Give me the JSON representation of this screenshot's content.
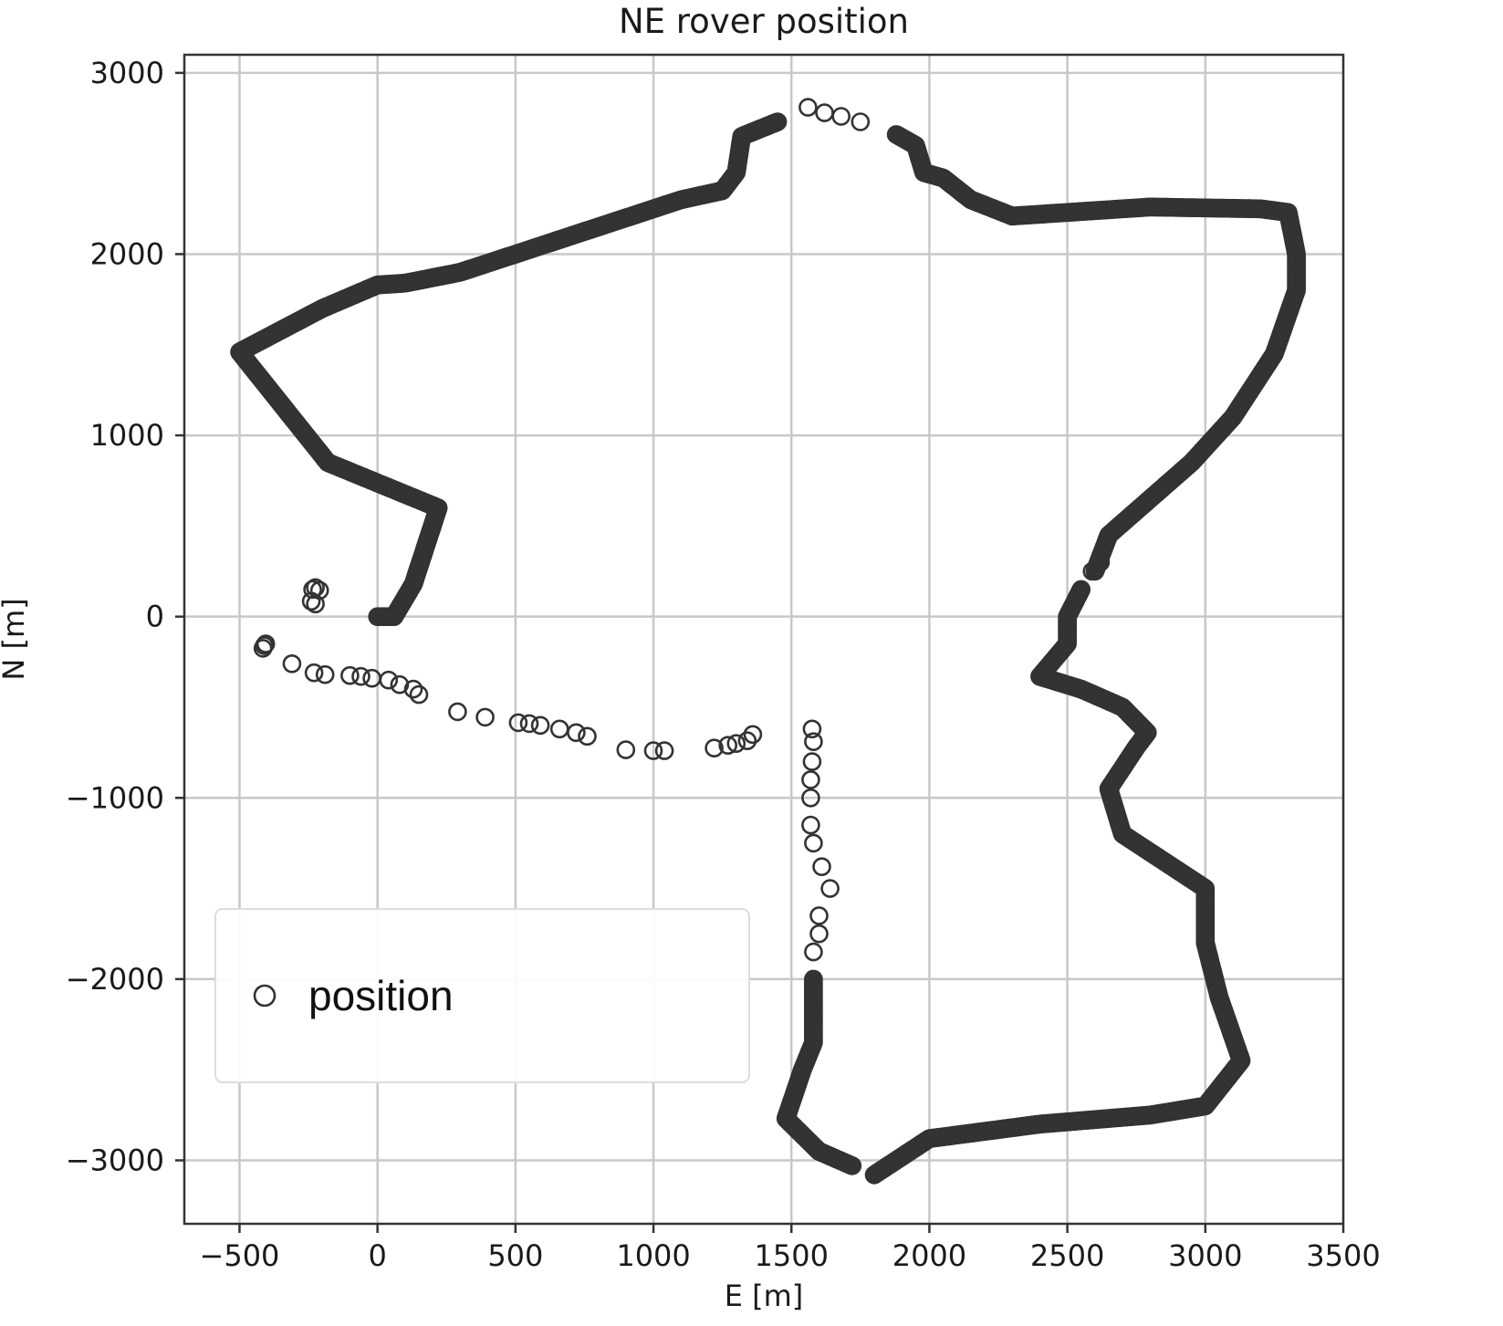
{
  "chart_data": {
    "type": "scatter",
    "title": "NE rover position",
    "xlabel": "E [m]",
    "ylabel": "N [m]",
    "xlim": [
      -700,
      3500
    ],
    "ylim": [
      -3350,
      3100
    ],
    "xticks": [
      -500,
      0,
      500,
      1000,
      1500,
      2000,
      2500,
      3000,
      3500
    ],
    "yticks": [
      -3000,
      -2000,
      -1000,
      0,
      1000,
      2000,
      3000
    ],
    "xtick_labels": [
      "−500",
      "0",
      "500",
      "1000",
      "1500",
      "2000",
      "2500",
      "3000",
      "3500"
    ],
    "ytick_labels": [
      "−3000",
      "−2000",
      "−1000",
      "0",
      "1000",
      "2000",
      "3000"
    ],
    "grid": true,
    "legend": {
      "placement": "lower-left",
      "entries": [
        "position"
      ]
    },
    "series": [
      {
        "name": "position",
        "marker": "open-circle",
        "color": "#333333",
        "segments": [
          {
            "density": "dense",
            "points": [
              [
                0,
                0
              ],
              [
                60,
                0
              ],
              [
                130,
                180
              ],
              [
                220,
                600
              ],
              [
                -180,
                850
              ],
              [
                -500,
                1460
              ],
              [
                -200,
                1700
              ],
              [
                0,
                1830
              ],
              [
                100,
                1840
              ],
              [
                300,
                1900
              ],
              [
                500,
                2000
              ],
              [
                800,
                2150
              ],
              [
                1100,
                2300
              ],
              [
                1250,
                2350
              ],
              [
                1300,
                2450
              ],
              [
                1320,
                2650
              ],
              [
                1450,
                2730
              ]
            ]
          },
          {
            "density": "sparse",
            "points": [
              [
                1560,
                2810
              ],
              [
                1620,
                2780
              ],
              [
                1680,
                2760
              ],
              [
                1750,
                2730
              ]
            ]
          },
          {
            "density": "dense",
            "points": [
              [
                1880,
                2660
              ],
              [
                1950,
                2600
              ],
              [
                1980,
                2450
              ],
              [
                2050,
                2420
              ],
              [
                2150,
                2300
              ],
              [
                2300,
                2210
              ],
              [
                2500,
                2230
              ],
              [
                2800,
                2260
              ],
              [
                3200,
                2250
              ],
              [
                3300,
                2230
              ],
              [
                3330,
                2000
              ],
              [
                3330,
                1800
              ],
              [
                3250,
                1450
              ],
              [
                3100,
                1100
              ],
              [
                2950,
                850
              ],
              [
                2800,
                650
              ],
              [
                2650,
                450
              ],
              [
                2600,
                250
              ]
            ]
          },
          {
            "density": "sparse",
            "points": [
              [
                2590,
                250
              ],
              [
                2620,
                300
              ]
            ]
          },
          {
            "density": "dense",
            "points": [
              [
                2550,
                150
              ],
              [
                2500,
                0
              ],
              [
                2500,
                -150
              ],
              [
                2400,
                -330
              ],
              [
                2550,
                -400
              ],
              [
                2700,
                -500
              ],
              [
                2790,
                -640
              ],
              [
                2750,
                -720
              ],
              [
                2650,
                -950
              ],
              [
                2700,
                -1200
              ],
              [
                2850,
                -1350
              ],
              [
                3000,
                -1500
              ],
              [
                3000,
                -1800
              ],
              [
                3050,
                -2100
              ],
              [
                3130,
                -2450
              ],
              [
                3000,
                -2700
              ],
              [
                2800,
                -2750
              ],
              [
                2400,
                -2800
              ],
              [
                2000,
                -2880
              ],
              [
                1800,
                -3080
              ]
            ]
          },
          {
            "density": "dense",
            "points": [
              [
                1720,
                -3030
              ],
              [
                1600,
                -2950
              ],
              [
                1480,
                -2770
              ],
              [
                1540,
                -2500
              ],
              [
                1580,
                -2350
              ],
              [
                1580,
                -2000
              ]
            ]
          },
          {
            "density": "sparse",
            "points": [
              [
                1580,
                -1850
              ],
              [
                1600,
                -1750
              ],
              [
                1600,
                -1650
              ],
              [
                1640,
                -1500
              ],
              [
                1610,
                -1380
              ],
              [
                1580,
                -1250
              ],
              [
                1570,
                -1150
              ],
              [
                1570,
                -1000
              ],
              [
                1570,
                -900
              ],
              [
                1575,
                -800
              ],
              [
                1580,
                -690
              ],
              [
                1575,
                -620
              ]
            ]
          },
          {
            "density": "sparse",
            "points": [
              [
                -235,
                150
              ],
              [
                -225,
                160
              ],
              [
                -210,
                145
              ],
              [
                -240,
                85
              ],
              [
                -225,
                70
              ],
              [
                -410,
                -160
              ],
              [
                -405,
                -150
              ],
              [
                -415,
                -175
              ],
              [
                -310,
                -260
              ],
              [
                -230,
                -310
              ],
              [
                -190,
                -320
              ],
              [
                -100,
                -325
              ],
              [
                -60,
                -330
              ],
              [
                -20,
                -340
              ],
              [
                40,
                -350
              ],
              [
                80,
                -375
              ],
              [
                130,
                -400
              ],
              [
                150,
                -430
              ],
              [
                290,
                -525
              ],
              [
                390,
                -555
              ],
              [
                510,
                -585
              ],
              [
                550,
                -590
              ],
              [
                590,
                -600
              ],
              [
                660,
                -620
              ],
              [
                720,
                -640
              ],
              [
                760,
                -660
              ],
              [
                900,
                -735
              ],
              [
                1000,
                -740
              ],
              [
                1040,
                -740
              ],
              [
                1220,
                -725
              ],
              [
                1270,
                -710
              ],
              [
                1300,
                -700
              ],
              [
                1340,
                -685
              ],
              [
                1360,
                -650
              ]
            ]
          }
        ]
      }
    ]
  }
}
